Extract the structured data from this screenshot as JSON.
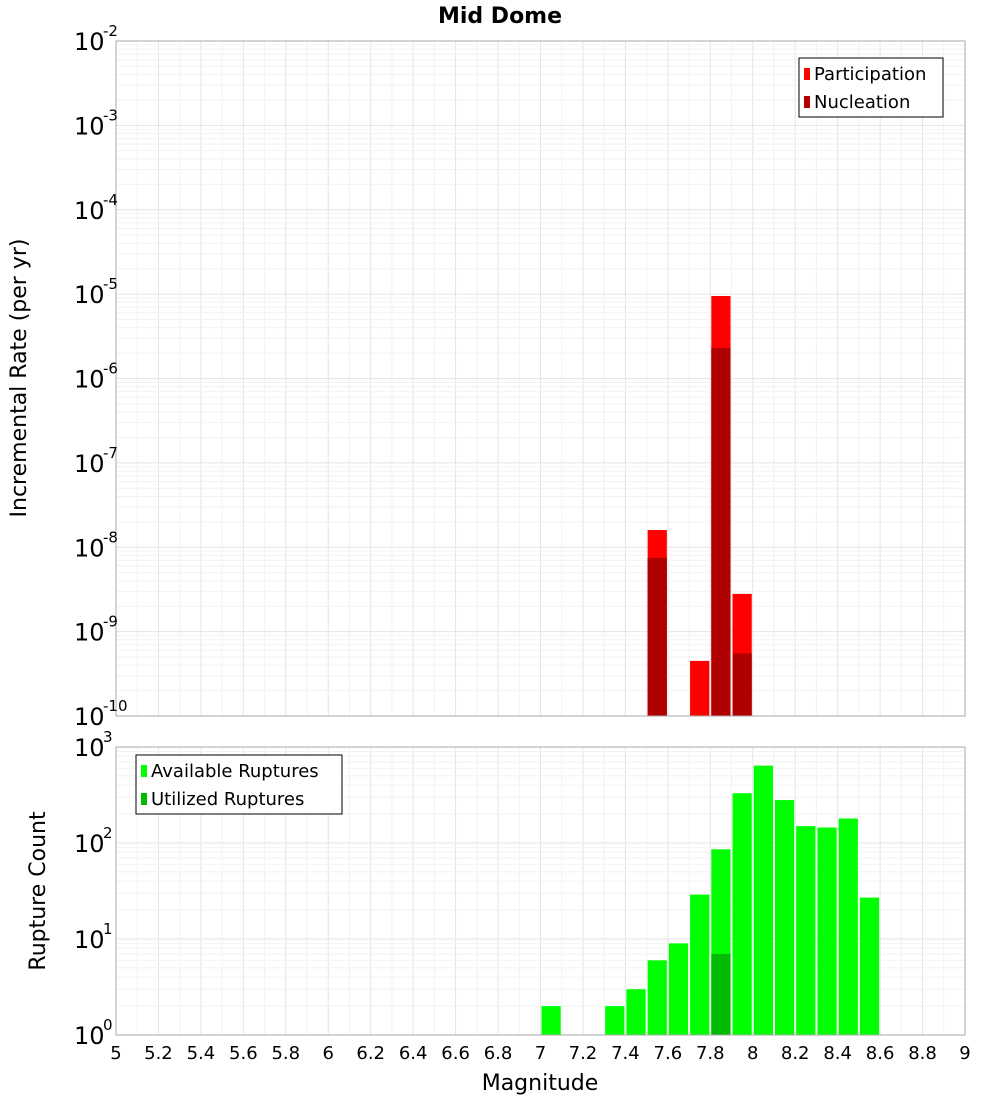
{
  "title": "Mid Dome",
  "chart_data": [
    {
      "type": "bar",
      "ylabel": "Incremental Rate (per yr)",
      "xlabel": "",
      "yscale": "log",
      "ylim_exp": [
        -10,
        -2
      ],
      "xlim": [
        5,
        9
      ],
      "bin_width": 0.1,
      "legend": {
        "position": "top-right",
        "items": [
          {
            "name": "Participation",
            "color": "#ff0000"
          },
          {
            "name": "Nucleation",
            "color": "#b00000"
          }
        ]
      },
      "series": [
        {
          "name": "Participation",
          "color": "#ff0000",
          "points": [
            {
              "x": 7.55,
              "y": 1.6e-08
            },
            {
              "x": 7.75,
              "y": 4.5e-10
            },
            {
              "x": 7.85,
              "y": 9.5e-06
            },
            {
              "x": 7.95,
              "y": 2.8e-09
            }
          ]
        },
        {
          "name": "Nucleation",
          "color": "#b00000",
          "points": [
            {
              "x": 7.55,
              "y": 7.5e-09
            },
            {
              "x": 7.85,
              "y": 2.3e-06
            },
            {
              "x": 7.95,
              "y": 5.5e-10
            }
          ]
        }
      ]
    },
    {
      "type": "bar",
      "ylabel": "Rupture Count",
      "xlabel": "Magnitude",
      "yscale": "log",
      "ylim_exp": [
        0,
        3
      ],
      "xlim": [
        5,
        9
      ],
      "bin_width": 0.1,
      "legend": {
        "position": "top-left",
        "items": [
          {
            "name": "Available Ruptures",
            "color": "#00ff00"
          },
          {
            "name": "Utilized Ruptures",
            "color": "#00bb00"
          }
        ]
      },
      "series": [
        {
          "name": "Available Ruptures",
          "color": "#00ff00",
          "points": [
            {
              "x": 7.05,
              "y": 2
            },
            {
              "x": 7.25,
              "y": 1
            },
            {
              "x": 7.35,
              "y": 2
            },
            {
              "x": 7.45,
              "y": 3
            },
            {
              "x": 7.55,
              "y": 6
            },
            {
              "x": 7.65,
              "y": 9
            },
            {
              "x": 7.75,
              "y": 29
            },
            {
              "x": 7.85,
              "y": 86
            },
            {
              "x": 7.95,
              "y": 330
            },
            {
              "x": 8.05,
              "y": 640
            },
            {
              "x": 8.15,
              "y": 280
            },
            {
              "x": 8.25,
              "y": 150
            },
            {
              "x": 8.35,
              "y": 145
            },
            {
              "x": 8.45,
              "y": 180
            },
            {
              "x": 8.55,
              "y": 27
            }
          ]
        },
        {
          "name": "Utilized Ruptures",
          "color": "#00bb00",
          "points": [
            {
              "x": 7.55,
              "y": 1
            },
            {
              "x": 7.75,
              "y": 1
            },
            {
              "x": 7.85,
              "y": 7
            },
            {
              "x": 7.95,
              "y": 1
            }
          ]
        }
      ]
    }
  ],
  "x_ticks": [
    "5",
    "5.2",
    "5.4",
    "5.6",
    "5.8",
    "6",
    "6.2",
    "6.4",
    "6.6",
    "6.8",
    "7",
    "7.2",
    "7.4",
    "7.6",
    "7.8",
    "8",
    "8.2",
    "8.4",
    "8.6",
    "8.8",
    "9"
  ]
}
